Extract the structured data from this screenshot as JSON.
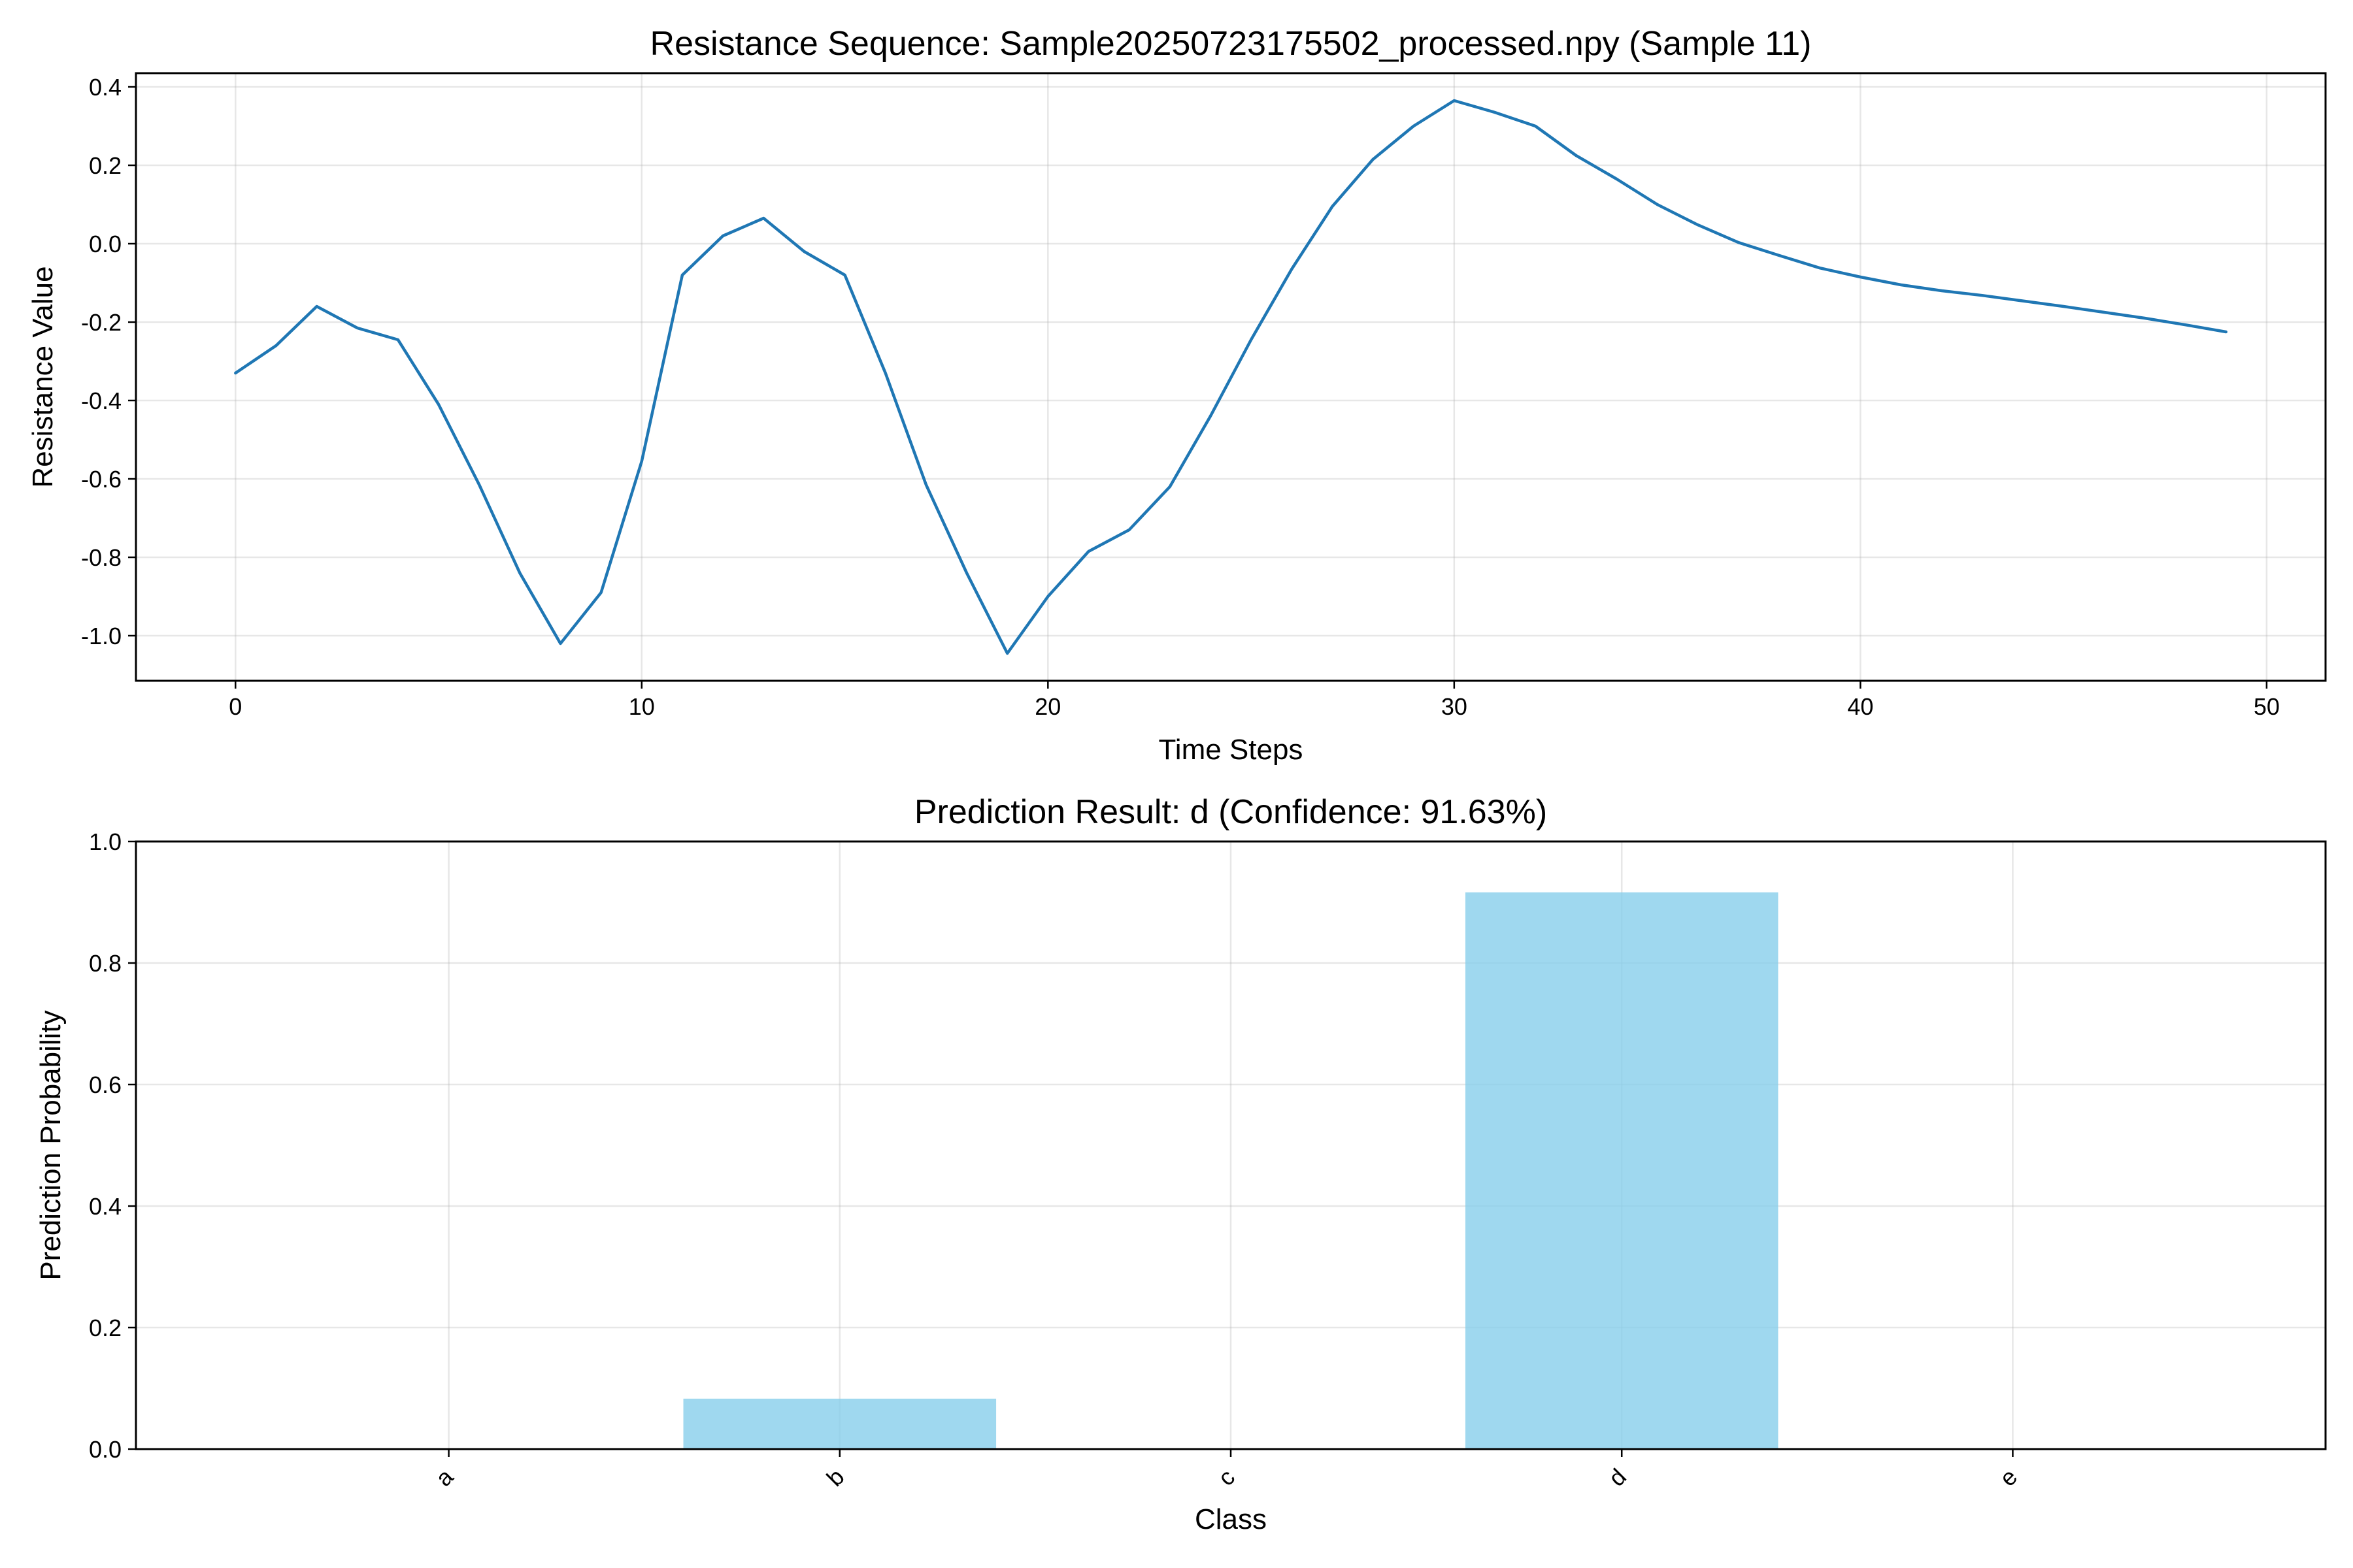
{
  "chart_data": [
    {
      "type": "line",
      "title": "Resistance Sequence: Sample20250723175502_processed.npy (Sample 11)",
      "xlabel": "Time Steps",
      "ylabel": "Resistance Value",
      "xlim": [
        -2.45,
        51.45
      ],
      "ylim": [
        -1.115,
        0.435
      ],
      "xticks": [
        0,
        10,
        20,
        30,
        40,
        50
      ],
      "yticks": [
        -1.0,
        -0.8,
        -0.6,
        -0.4,
        -0.2,
        0.0,
        0.2,
        0.4
      ],
      "ytick_labels": [
        "-1.0",
        "-0.8",
        "-0.6",
        "-0.4",
        "-0.2",
        "0.0",
        "0.2",
        "0.4"
      ],
      "grid": true,
      "color": "#1f77b4",
      "series": [
        {
          "x": [
            0,
            1,
            2,
            3,
            4,
            5,
            6,
            7,
            8,
            9,
            10,
            11,
            12,
            13,
            14,
            15,
            16,
            17,
            18,
            19,
            20,
            21,
            22,
            23,
            24,
            25,
            26,
            27,
            28,
            29,
            30,
            31,
            32,
            33,
            34,
            35,
            36,
            37,
            38,
            39,
            40,
            41,
            42,
            43,
            44,
            45,
            46,
            47,
            48,
            49
          ],
          "values": [
            -0.33,
            -0.26,
            -0.16,
            -0.215,
            -0.245,
            -0.41,
            -0.615,
            -0.84,
            -1.02,
            -0.89,
            -0.555,
            -0.08,
            0.02,
            0.065,
            -0.02,
            -0.08,
            -0.33,
            -0.615,
            -0.84,
            -1.045,
            -0.9,
            -0.785,
            -0.73,
            -0.62,
            -0.44,
            -0.245,
            -0.065,
            0.095,
            0.215,
            0.3,
            0.365,
            0.335,
            0.3,
            0.225,
            0.165,
            0.1,
            0.048,
            0.003,
            -0.03,
            -0.062,
            -0.085,
            -0.105,
            -0.12,
            -0.132,
            -0.146,
            -0.16,
            -0.175,
            -0.19,
            -0.207,
            -0.225
          ]
        }
      ]
    },
    {
      "type": "bar",
      "title": "Prediction Result: d (Confidence: 91.63%)",
      "xlabel": "Class",
      "ylabel": "Prediction Probability",
      "categories": [
        "a",
        "b",
        "c",
        "d",
        "e"
      ],
      "values": [
        0.0,
        0.083,
        0.0,
        0.9163,
        0.0
      ],
      "ylim": [
        0,
        1.0
      ],
      "yticks": [
        0.0,
        0.2,
        0.4,
        0.6,
        0.8,
        1.0
      ],
      "ytick_labels": [
        "0.0",
        "0.2",
        "0.4",
        "0.6",
        "0.8",
        "1.0"
      ],
      "grid": true,
      "color": "#87ceeb",
      "xtick_rotation": 45
    }
  ]
}
